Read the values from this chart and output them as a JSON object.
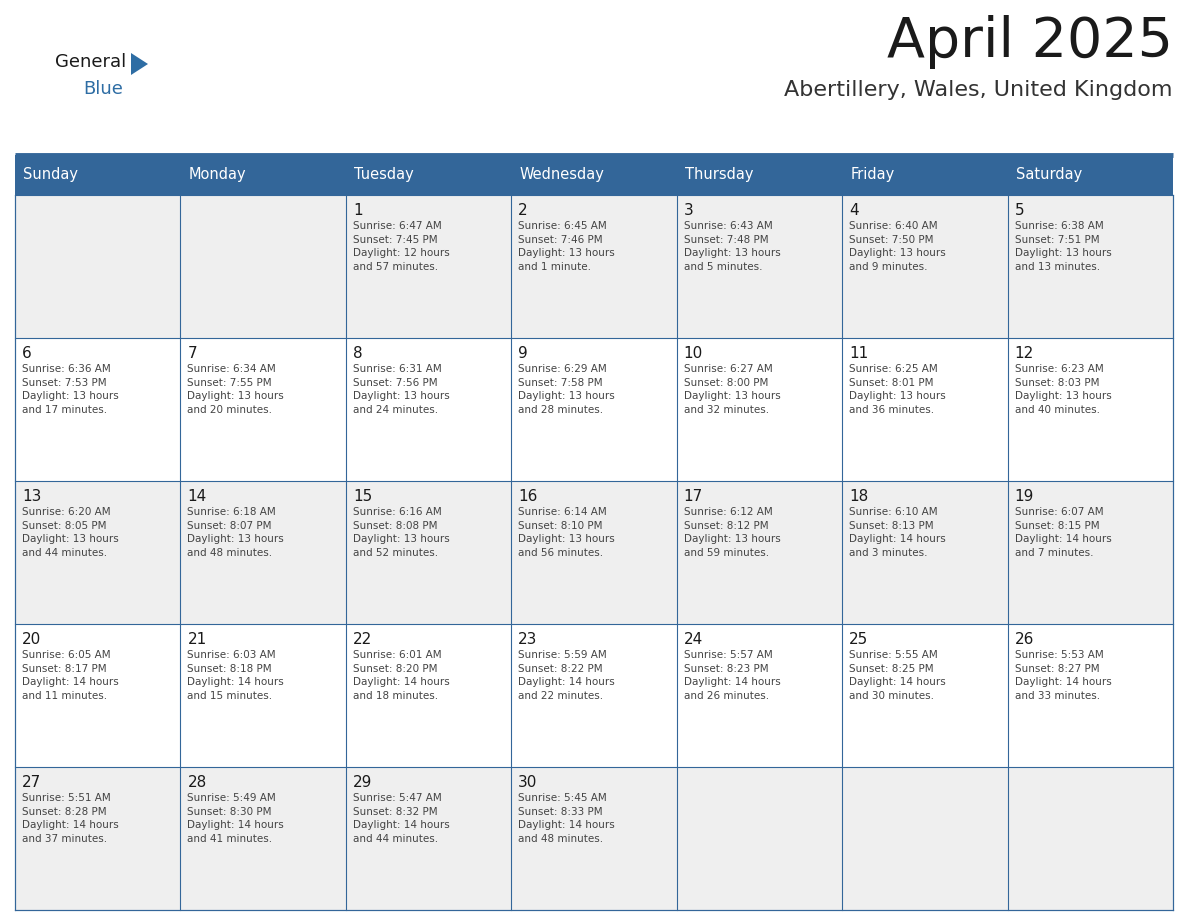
{
  "title": "April 2025",
  "subtitle": "Abertillery, Wales, United Kingdom",
  "header_bg": "#336699",
  "header_text_color": "#FFFFFF",
  "cell_bg_light": "#EFEFEF",
  "cell_bg_white": "#FFFFFF",
  "day_headers": [
    "Sunday",
    "Monday",
    "Tuesday",
    "Wednesday",
    "Thursday",
    "Friday",
    "Saturday"
  ],
  "title_color": "#1a1a1a",
  "subtitle_color": "#333333",
  "date_color": "#1a1a1a",
  "content_color": "#444444",
  "line_color": "#336699",
  "logo_general_color": "#1a1a1a",
  "logo_blue_color": "#2E6DA4",
  "logo_triangle_color": "#2E6DA4",
  "weeks": [
    [
      {
        "day": "",
        "info": ""
      },
      {
        "day": "",
        "info": ""
      },
      {
        "day": "1",
        "info": "Sunrise: 6:47 AM\nSunset: 7:45 PM\nDaylight: 12 hours\nand 57 minutes."
      },
      {
        "day": "2",
        "info": "Sunrise: 6:45 AM\nSunset: 7:46 PM\nDaylight: 13 hours\nand 1 minute."
      },
      {
        "day": "3",
        "info": "Sunrise: 6:43 AM\nSunset: 7:48 PM\nDaylight: 13 hours\nand 5 minutes."
      },
      {
        "day": "4",
        "info": "Sunrise: 6:40 AM\nSunset: 7:50 PM\nDaylight: 13 hours\nand 9 minutes."
      },
      {
        "day": "5",
        "info": "Sunrise: 6:38 AM\nSunset: 7:51 PM\nDaylight: 13 hours\nand 13 minutes."
      }
    ],
    [
      {
        "day": "6",
        "info": "Sunrise: 6:36 AM\nSunset: 7:53 PM\nDaylight: 13 hours\nand 17 minutes."
      },
      {
        "day": "7",
        "info": "Sunrise: 6:34 AM\nSunset: 7:55 PM\nDaylight: 13 hours\nand 20 minutes."
      },
      {
        "day": "8",
        "info": "Sunrise: 6:31 AM\nSunset: 7:56 PM\nDaylight: 13 hours\nand 24 minutes."
      },
      {
        "day": "9",
        "info": "Sunrise: 6:29 AM\nSunset: 7:58 PM\nDaylight: 13 hours\nand 28 minutes."
      },
      {
        "day": "10",
        "info": "Sunrise: 6:27 AM\nSunset: 8:00 PM\nDaylight: 13 hours\nand 32 minutes."
      },
      {
        "day": "11",
        "info": "Sunrise: 6:25 AM\nSunset: 8:01 PM\nDaylight: 13 hours\nand 36 minutes."
      },
      {
        "day": "12",
        "info": "Sunrise: 6:23 AM\nSunset: 8:03 PM\nDaylight: 13 hours\nand 40 minutes."
      }
    ],
    [
      {
        "day": "13",
        "info": "Sunrise: 6:20 AM\nSunset: 8:05 PM\nDaylight: 13 hours\nand 44 minutes."
      },
      {
        "day": "14",
        "info": "Sunrise: 6:18 AM\nSunset: 8:07 PM\nDaylight: 13 hours\nand 48 minutes."
      },
      {
        "day": "15",
        "info": "Sunrise: 6:16 AM\nSunset: 8:08 PM\nDaylight: 13 hours\nand 52 minutes."
      },
      {
        "day": "16",
        "info": "Sunrise: 6:14 AM\nSunset: 8:10 PM\nDaylight: 13 hours\nand 56 minutes."
      },
      {
        "day": "17",
        "info": "Sunrise: 6:12 AM\nSunset: 8:12 PM\nDaylight: 13 hours\nand 59 minutes."
      },
      {
        "day": "18",
        "info": "Sunrise: 6:10 AM\nSunset: 8:13 PM\nDaylight: 14 hours\nand 3 minutes."
      },
      {
        "day": "19",
        "info": "Sunrise: 6:07 AM\nSunset: 8:15 PM\nDaylight: 14 hours\nand 7 minutes."
      }
    ],
    [
      {
        "day": "20",
        "info": "Sunrise: 6:05 AM\nSunset: 8:17 PM\nDaylight: 14 hours\nand 11 minutes."
      },
      {
        "day": "21",
        "info": "Sunrise: 6:03 AM\nSunset: 8:18 PM\nDaylight: 14 hours\nand 15 minutes."
      },
      {
        "day": "22",
        "info": "Sunrise: 6:01 AM\nSunset: 8:20 PM\nDaylight: 14 hours\nand 18 minutes."
      },
      {
        "day": "23",
        "info": "Sunrise: 5:59 AM\nSunset: 8:22 PM\nDaylight: 14 hours\nand 22 minutes."
      },
      {
        "day": "24",
        "info": "Sunrise: 5:57 AM\nSunset: 8:23 PM\nDaylight: 14 hours\nand 26 minutes."
      },
      {
        "day": "25",
        "info": "Sunrise: 5:55 AM\nSunset: 8:25 PM\nDaylight: 14 hours\nand 30 minutes."
      },
      {
        "day": "26",
        "info": "Sunrise: 5:53 AM\nSunset: 8:27 PM\nDaylight: 14 hours\nand 33 minutes."
      }
    ],
    [
      {
        "day": "27",
        "info": "Sunrise: 5:51 AM\nSunset: 8:28 PM\nDaylight: 14 hours\nand 37 minutes."
      },
      {
        "day": "28",
        "info": "Sunrise: 5:49 AM\nSunset: 8:30 PM\nDaylight: 14 hours\nand 41 minutes."
      },
      {
        "day": "29",
        "info": "Sunrise: 5:47 AM\nSunset: 8:32 PM\nDaylight: 14 hours\nand 44 minutes."
      },
      {
        "day": "30",
        "info": "Sunrise: 5:45 AM\nSunset: 8:33 PM\nDaylight: 14 hours\nand 48 minutes."
      },
      {
        "day": "",
        "info": ""
      },
      {
        "day": "",
        "info": ""
      },
      {
        "day": "",
        "info": ""
      }
    ]
  ]
}
